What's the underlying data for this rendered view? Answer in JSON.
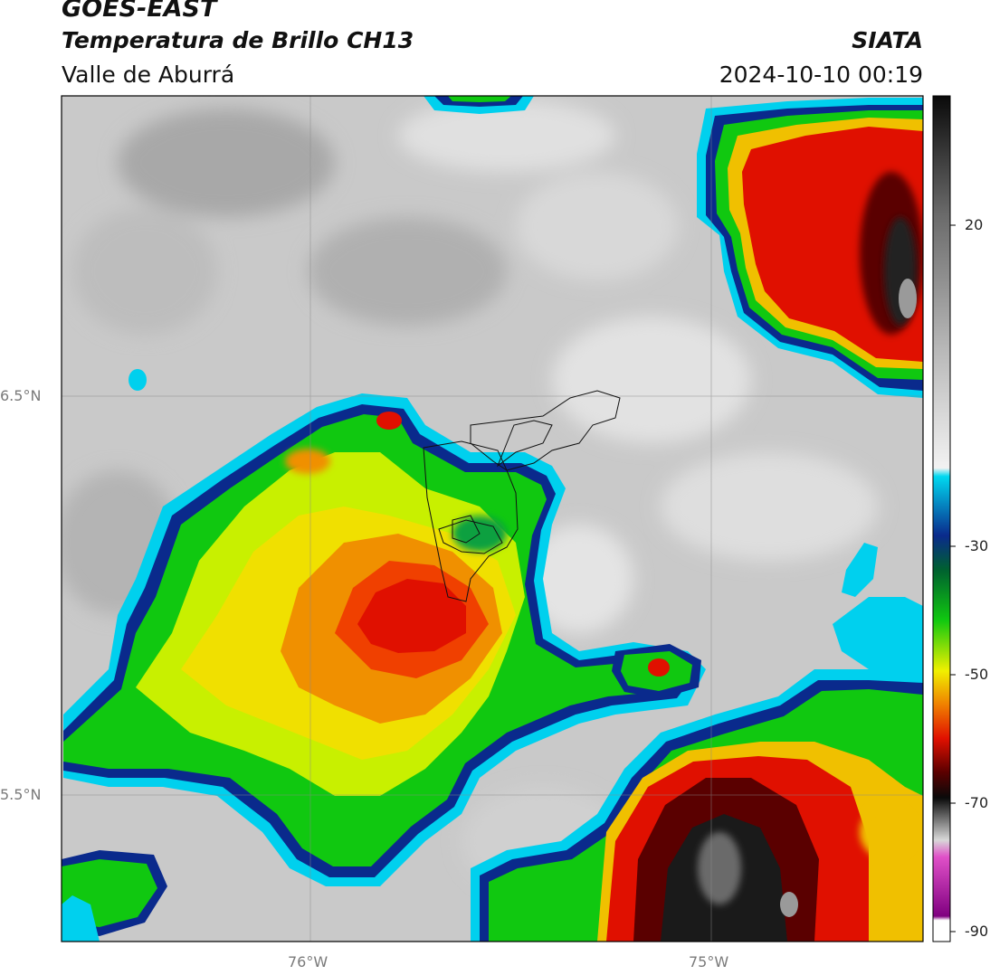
{
  "header": {
    "satellite": "GOES-EAST",
    "product": "Temperatura de Brillo CH13",
    "region": "Valle de Aburrá",
    "org": "SIATA",
    "datetime": "2024-10-10 00:19"
  },
  "axes": {
    "lat_labels": [
      "6.5°N",
      "5.5°N"
    ],
    "lon_labels": [
      "76°W",
      "75°W"
    ]
  },
  "colorbar": {
    "ticks": [
      "20",
      "-30",
      "-50",
      "-70",
      "-90"
    ],
    "colors": {
      "black": "#0a0a0a",
      "gray_light": "#d8d8d8",
      "white": "#f2f2f2",
      "cyan": "#00d8f0",
      "blue": "#0a2a8c",
      "green": "#10c810",
      "yellow": "#f0f000",
      "orange": "#f08000",
      "red": "#e01000",
      "darkred": "#5a0000",
      "pink": "#e050c8",
      "purple": "#800080"
    }
  }
}
